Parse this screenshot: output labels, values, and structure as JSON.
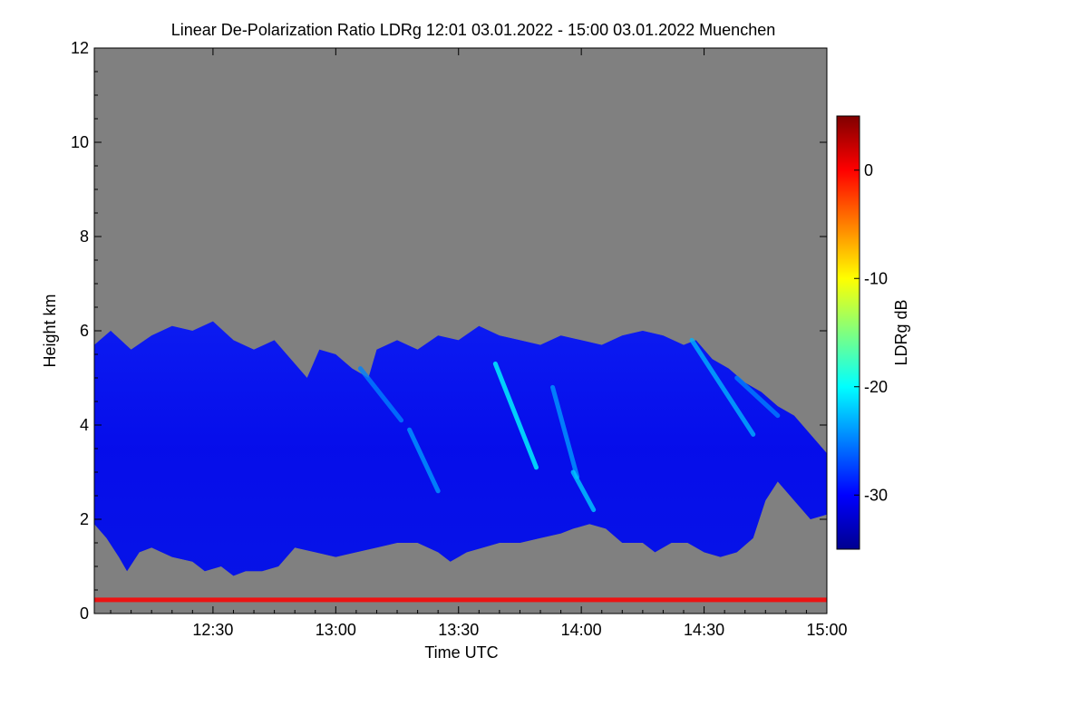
{
  "chart_data": {
    "type": "heatmap",
    "title": "Linear De-Polarization Ratio LDRg   12:01 03.01.2022 - 15:00 03.01.2022 Muenchen",
    "xlabel": "Time UTC",
    "ylabel": "Height km",
    "x_range_minutes": [
      721,
      900
    ],
    "x_ticks": [
      {
        "label": "12:30",
        "minutes": 750
      },
      {
        "label": "13:00",
        "minutes": 780
      },
      {
        "label": "13:30",
        "minutes": 810
      },
      {
        "label": "14:00",
        "minutes": 840
      },
      {
        "label": "14:30",
        "minutes": 870
      },
      {
        "label": "15:00",
        "minutes": 900
      }
    ],
    "ylim": [
      0,
      12
    ],
    "y_ticks": [
      0,
      2,
      4,
      6,
      8,
      10,
      12
    ],
    "background_color": "#808080",
    "cloud_top_km": [
      [
        721,
        5.7
      ],
      [
        725,
        6.0
      ],
      [
        730,
        5.6
      ],
      [
        735,
        5.9
      ],
      [
        740,
        6.1
      ],
      [
        745,
        6.0
      ],
      [
        750,
        6.2
      ],
      [
        755,
        5.8
      ],
      [
        760,
        5.6
      ],
      [
        765,
        5.8
      ],
      [
        770,
        5.3
      ],
      [
        773,
        5.0
      ],
      [
        776,
        5.6
      ],
      [
        780,
        5.5
      ],
      [
        784,
        5.2
      ],
      [
        788,
        5.0
      ],
      [
        790,
        5.6
      ],
      [
        795,
        5.8
      ],
      [
        800,
        5.6
      ],
      [
        805,
        5.9
      ],
      [
        810,
        5.8
      ],
      [
        815,
        6.1
      ],
      [
        820,
        5.9
      ],
      [
        825,
        5.8
      ],
      [
        830,
        5.7
      ],
      [
        835,
        5.9
      ],
      [
        840,
        5.8
      ],
      [
        845,
        5.7
      ],
      [
        850,
        5.9
      ],
      [
        855,
        6.0
      ],
      [
        860,
        5.9
      ],
      [
        865,
        5.7
      ],
      [
        868,
        5.8
      ],
      [
        872,
        5.4
      ],
      [
        876,
        5.2
      ],
      [
        880,
        4.9
      ],
      [
        884,
        4.7
      ],
      [
        888,
        4.4
      ],
      [
        892,
        4.2
      ],
      [
        896,
        3.8
      ],
      [
        900,
        3.4
      ]
    ],
    "cloud_base_km": [
      [
        721,
        1.9
      ],
      [
        724,
        1.6
      ],
      [
        727,
        1.2
      ],
      [
        729,
        0.9
      ],
      [
        732,
        1.3
      ],
      [
        735,
        1.4
      ],
      [
        740,
        1.2
      ],
      [
        745,
        1.1
      ],
      [
        748,
        0.9
      ],
      [
        752,
        1.0
      ],
      [
        755,
        0.8
      ],
      [
        758,
        0.9
      ],
      [
        762,
        0.9
      ],
      [
        766,
        1.0
      ],
      [
        770,
        1.4
      ],
      [
        775,
        1.3
      ],
      [
        780,
        1.2
      ],
      [
        785,
        1.3
      ],
      [
        790,
        1.4
      ],
      [
        795,
        1.5
      ],
      [
        800,
        1.5
      ],
      [
        805,
        1.3
      ],
      [
        808,
        1.1
      ],
      [
        812,
        1.3
      ],
      [
        816,
        1.4
      ],
      [
        820,
        1.5
      ],
      [
        825,
        1.5
      ],
      [
        830,
        1.6
      ],
      [
        835,
        1.7
      ],
      [
        838,
        1.8
      ],
      [
        842,
        1.9
      ],
      [
        846,
        1.8
      ],
      [
        850,
        1.5
      ],
      [
        855,
        1.5
      ],
      [
        858,
        1.3
      ],
      [
        862,
        1.5
      ],
      [
        866,
        1.5
      ],
      [
        870,
        1.3
      ],
      [
        874,
        1.2
      ],
      [
        878,
        1.3
      ],
      [
        882,
        1.6
      ],
      [
        885,
        2.4
      ],
      [
        888,
        2.8
      ],
      [
        892,
        2.4
      ],
      [
        896,
        2.0
      ],
      [
        900,
        2.1
      ]
    ],
    "cloud_ldr_db": -31,
    "features": [
      {
        "type": "fallstreak",
        "from": [
          819,
          5.3
        ],
        "to": [
          829,
          3.1
        ],
        "ldr_db": -20
      },
      {
        "type": "fallstreak",
        "from": [
          833,
          4.8
        ],
        "to": [
          839,
          2.9
        ],
        "ldr_db": -24
      },
      {
        "type": "fallstreak",
        "from": [
          838,
          3.0
        ],
        "to": [
          843,
          2.2
        ],
        "ldr_db": -22
      },
      {
        "type": "fallstreak",
        "from": [
          786,
          5.2
        ],
        "to": [
          796,
          4.1
        ],
        "ldr_db": -25
      },
      {
        "type": "fallstreak",
        "from": [
          798,
          3.9
        ],
        "to": [
          805,
          2.6
        ],
        "ldr_db": -24
      },
      {
        "type": "fallstreak",
        "from": [
          867,
          5.8
        ],
        "to": [
          882,
          3.8
        ],
        "ldr_db": -23
      },
      {
        "type": "fallstreak",
        "from": [
          878,
          5.0
        ],
        "to": [
          888,
          4.2
        ],
        "ldr_db": -25
      }
    ],
    "ground_clutter": {
      "height_km": 0.3,
      "ldr_db": 0
    },
    "colorbar": {
      "label": "LDRg dB",
      "range_db": [
        -35,
        5
      ],
      "ticks": [
        0,
        -10,
        -20,
        -30
      ]
    }
  }
}
